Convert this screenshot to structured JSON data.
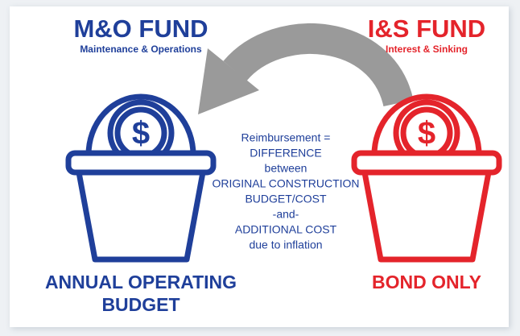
{
  "left_fund": {
    "title": "M&O FUND",
    "subtitle": "Maintenance & Operations",
    "symbol": "$",
    "label_lines": [
      "ANNUAL OPERATING",
      "BUDGET"
    ]
  },
  "right_fund": {
    "title": "I&S FUND",
    "subtitle": "Interest & Sinking",
    "symbol": "$",
    "label_lines": [
      "BOND ONLY"
    ]
  },
  "explanation": {
    "lines": [
      "Reimbursement =",
      "DIFFERENCE",
      "between",
      "ORIGINAL CONSTRUCTION",
      "BUDGET/COST",
      "-and-",
      "ADDITIONAL COST",
      "due to inflation"
    ]
  }
}
